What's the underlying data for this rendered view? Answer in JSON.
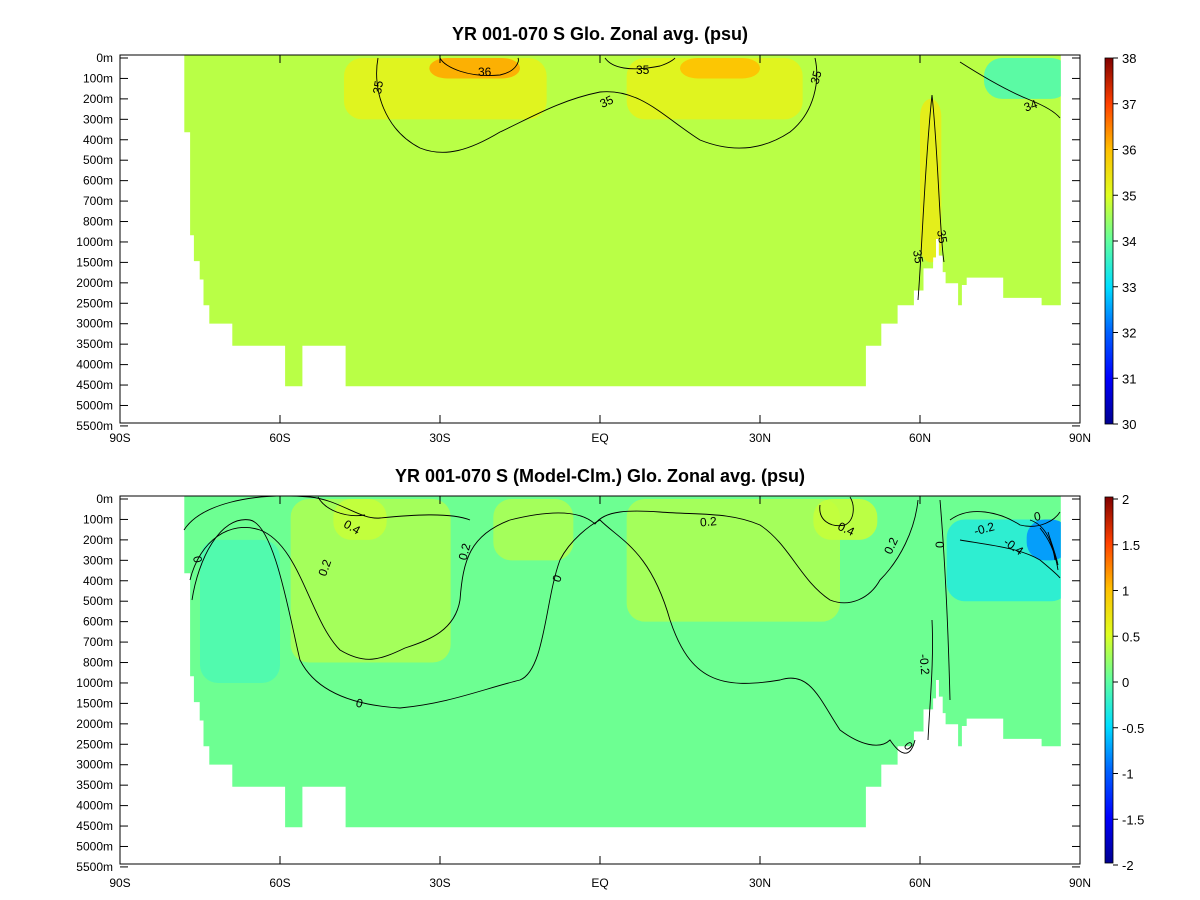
{
  "chart_data": [
    {
      "type": "heatmap",
      "title": "YR 001-070 S Glo. Zonal avg. (psu)",
      "x_ticks": [
        "90S",
        "60S",
        "30S",
        "EQ",
        "30N",
        "60N",
        "90N"
      ],
      "x_values": [
        -90,
        -60,
        -30,
        0,
        30,
        60,
        90
      ],
      "y_ticks": [
        "0m",
        "100m",
        "200m",
        "300m",
        "400m",
        "500m",
        "600m",
        "700m",
        "800m",
        "1000m",
        "1500m",
        "2000m",
        "2500m",
        "3000m",
        "3500m",
        "4000m",
        "4500m",
        "5000m",
        "5500m"
      ],
      "colorbar": {
        "ticks": [
          "38",
          "37",
          "36",
          "35",
          "34",
          "33",
          "32",
          "31",
          "30"
        ],
        "range": [
          30,
          38
        ]
      },
      "background_value": 34.7,
      "regions": [
        {
          "value": 35.2,
          "lat_range": [
            -48,
            -10
          ],
          "depth_levels": [
            0,
            3
          ]
        },
        {
          "value": 36.2,
          "lat_range": [
            -32,
            -15
          ],
          "depth_levels": [
            0,
            1
          ]
        },
        {
          "value": 35.2,
          "lat_range": [
            5,
            38
          ],
          "depth_levels": [
            0,
            3
          ]
        },
        {
          "value": 36.0,
          "lat_range": [
            15,
            30
          ],
          "depth_levels": [
            0,
            1
          ]
        },
        {
          "value": 35.3,
          "lat_range": [
            60,
            64
          ],
          "depth_levels": [
            2,
            10
          ]
        },
        {
          "value": 33.8,
          "lat_range": [
            72,
            88
          ],
          "depth_levels": [
            0,
            2
          ]
        }
      ],
      "contour_labels": [
        "36",
        "35",
        "35",
        "35",
        "35",
        "34",
        "35",
        "35"
      ]
    },
    {
      "type": "heatmap",
      "title": "YR 001-070 S (Model-Clm.) Glo. Zonal avg. (psu)",
      "x_ticks": [
        "90S",
        "60S",
        "30S",
        "EQ",
        "30N",
        "60N",
        "90N"
      ],
      "x_values": [
        -90,
        -60,
        -30,
        0,
        30,
        60,
        90
      ],
      "y_ticks": [
        "0m",
        "100m",
        "200m",
        "300m",
        "400m",
        "500m",
        "600m",
        "700m",
        "800m",
        "1000m",
        "1500m",
        "2000m",
        "2500m",
        "3000m",
        "3500m",
        "4000m",
        "4500m",
        "5000m",
        "5500m"
      ],
      "colorbar": {
        "ticks": [
          "2",
          "1.5",
          "1",
          "0.5",
          "0",
          "-0.5",
          "-1",
          "-1.5",
          "-2"
        ],
        "range": [
          -2,
          2
        ]
      },
      "background_value": 0.05,
      "regions": [
        {
          "value": 0.3,
          "lat_range": [
            -58,
            -28
          ],
          "depth_levels": [
            0,
            8
          ]
        },
        {
          "value": 0.4,
          "lat_range": [
            -50,
            -40
          ],
          "depth_levels": [
            0,
            2
          ]
        },
        {
          "value": 0.3,
          "lat_range": [
            -20,
            -5
          ],
          "depth_levels": [
            0,
            3
          ]
        },
        {
          "value": 0.3,
          "lat_range": [
            5,
            45
          ],
          "depth_levels": [
            0,
            6
          ]
        },
        {
          "value": 0.4,
          "lat_range": [
            40,
            52
          ],
          "depth_levels": [
            0,
            2
          ]
        },
        {
          "value": -0.1,
          "lat_range": [
            -75,
            -60
          ],
          "depth_levels": [
            2,
            9
          ]
        },
        {
          "value": -0.3,
          "lat_range": [
            65,
            88
          ],
          "depth_levels": [
            1,
            5
          ]
        },
        {
          "value": -0.8,
          "lat_range": [
            80,
            88
          ],
          "depth_levels": [
            1,
            3
          ]
        }
      ],
      "contour_labels": [
        "0.4",
        "0",
        "0.2",
        "0.2",
        "0",
        "0.2",
        "0.4",
        "0.2",
        "0",
        "-0.2",
        "-0.4",
        "0",
        "0",
        "-0.2",
        "0"
      ]
    }
  ]
}
